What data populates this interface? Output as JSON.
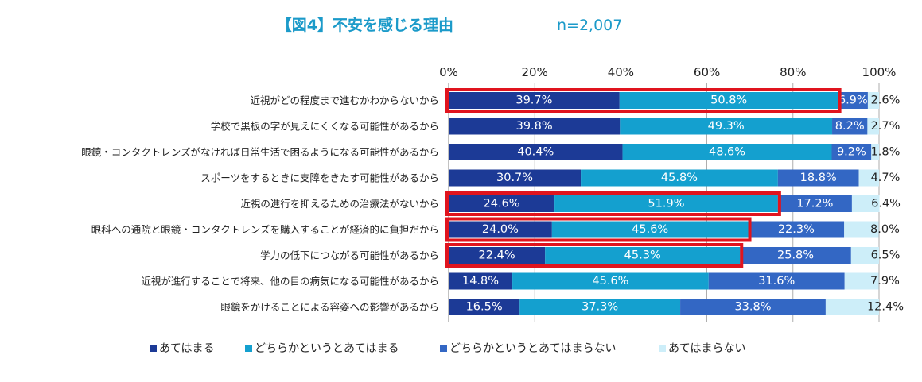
{
  "chart_data": {
    "type": "bar",
    "stacked": true,
    "orientation": "horizontal",
    "title": "【図4】不安を感じる理由",
    "sample_size": "n=2,007",
    "xlim": [
      0,
      100
    ],
    "x_ticks": [
      "0%",
      "20%",
      "40%",
      "60%",
      "80%",
      "100%"
    ],
    "grid": true,
    "legend_position": "bottom",
    "categories": [
      "近視がどの程度まで進むかわからないから",
      "学校で黒板の字が見えにくくなる可能性があるから",
      "眼鏡・コンタクトレンズがなければ日常生活で困るようになる可能性があるから",
      "スポーツをするときに支障をきたす可能性があるから",
      "近視の進行を抑えるための治療法がないから",
      "眼科への通院と眼鏡・コンタクトレンズを購入することが経済的に負担だから",
      "学力の低下につながる可能性があるから",
      "近視が進行することで将来、他の目の病気になる可能性があるから",
      "眼鏡をかけることによる容姿への影響があるから"
    ],
    "series": [
      {
        "name": "あてはまる",
        "color": "#1c3a96",
        "values": [
          39.7,
          39.8,
          40.4,
          30.7,
          24.6,
          24.0,
          22.4,
          14.8,
          16.5
        ],
        "labels": [
          "39.7%",
          "39.8%",
          "40.4%",
          "30.7%",
          "24.6%",
          "24.0%",
          "22.4%",
          "14.8%",
          "16.5%"
        ]
      },
      {
        "name": "どちらかというとあてはまる",
        "color": "#14a0cf",
        "values": [
          50.8,
          49.3,
          48.6,
          45.8,
          51.9,
          45.6,
          45.3,
          45.6,
          37.3
        ],
        "labels": [
          "50.8%",
          "49.3%",
          "48.6%",
          "45.8%",
          "51.9%",
          "45.6%",
          "45.3%",
          "45.6%",
          "37.3%"
        ]
      },
      {
        "name": "どちらかというとあてはまらない",
        "color": "#3367c4",
        "values": [
          6.9,
          8.2,
          9.2,
          18.8,
          17.2,
          22.3,
          25.8,
          31.6,
          33.8
        ],
        "labels": [
          "6.9%",
          "8.2%",
          "9.2%",
          "18.8%",
          "17.2%",
          "22.3%",
          "25.8%",
          "31.6%",
          "33.8%"
        ]
      },
      {
        "name": "あてはまらない",
        "color": "#cdeef9",
        "values": [
          2.6,
          2.7,
          1.8,
          4.7,
          6.4,
          8.0,
          6.5,
          7.9,
          12.4
        ],
        "labels": [
          "2.6%",
          "2.7%",
          "1.8%",
          "4.7%",
          "6.4%",
          "8.0%",
          "6.5%",
          "7.9%",
          "12.4%"
        ]
      }
    ],
    "highlights": [
      {
        "row": 0,
        "from": 0,
        "to": 90.5
      },
      {
        "row": 4,
        "from": 0,
        "to": 76.5
      },
      {
        "row": 5,
        "from": 0,
        "to": 69.6
      },
      {
        "row": 6,
        "from": 0,
        "to": 67.7
      }
    ],
    "colors": {
      "title": "#1b9ac9",
      "highlight": "#e0141e",
      "grid": "#9a9a9a",
      "text": "#222222"
    }
  }
}
